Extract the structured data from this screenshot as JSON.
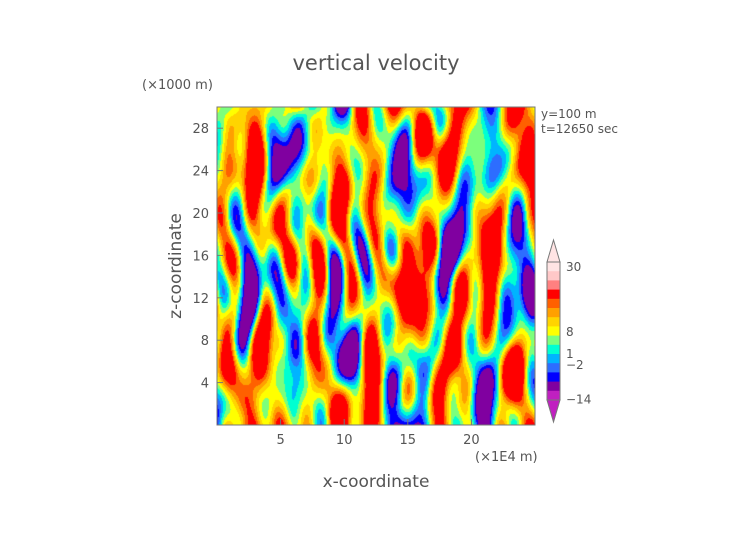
{
  "chart_data": {
    "type": "heatmap",
    "title": "vertical velocity",
    "xlabel": "x-coordinate",
    "ylabel": "z-coordinate",
    "x_unit": "(×1E4 m)",
    "y_unit": "(×1000 m)",
    "annotations": [
      "y=100 m",
      "t=12650 sec"
    ],
    "xlim": [
      0,
      25
    ],
    "ylim": [
      0,
      30
    ],
    "x_ticks": [
      5,
      10,
      15,
      20
    ],
    "y_ticks": [
      4,
      8,
      12,
      16,
      20,
      24,
      28
    ],
    "colorbar": {
      "levels": [
        -14,
        -2,
        1,
        8,
        30
      ],
      "tick_labels": [
        "30",
        "8",
        "1",
        "−2",
        "−14"
      ],
      "colors": [
        "#c020c0",
        "#8000a0",
        "#0000ff",
        "#2d6dff",
        "#00b4ff",
        "#00ffd2",
        "#7cff7c",
        "#ffff00",
        "#ffd400",
        "#ffa000",
        "#ff6000",
        "#ff0000",
        "#ff8080",
        "#ffc8c8",
        "#ffe4e4"
      ]
    }
  }
}
